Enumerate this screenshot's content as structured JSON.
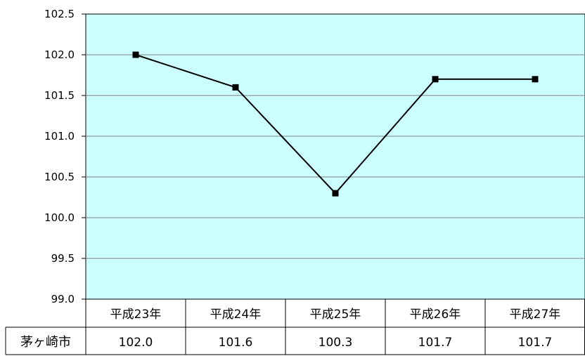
{
  "chart_data": {
    "type": "line",
    "categories": [
      "平成23年",
      "平成24年",
      "平成25年",
      "平成26年",
      "平成27年"
    ],
    "series": [
      {
        "name": "茅ヶ崎市",
        "values": [
          102.0,
          101.6,
          100.3,
          101.7,
          101.7
        ]
      }
    ],
    "value_labels": [
      "102.0",
      "101.6",
      "100.3",
      "101.7",
      "101.7"
    ],
    "ylim": [
      99.0,
      102.5
    ],
    "yticks": [
      "99.0",
      "99.5",
      "100.0",
      "100.5",
      "101.0",
      "101.5",
      "102.0",
      "102.5"
    ],
    "grid": true,
    "data_table": true,
    "colors": {
      "plot_background": "#ccffff",
      "line": "#000000",
      "marker": "#000000",
      "grid": "#7f7f7f"
    }
  }
}
